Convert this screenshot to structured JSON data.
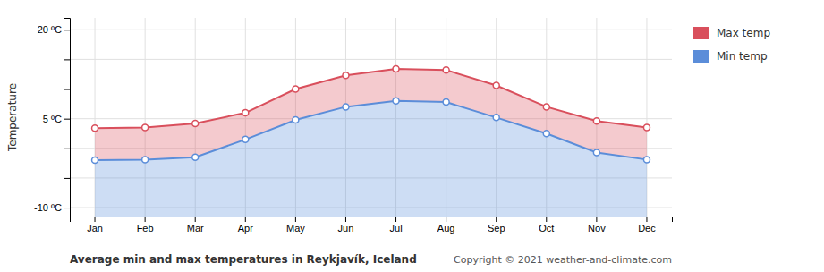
{
  "chart_data": {
    "type": "area",
    "title": "Average min and max temperatures in Reykjavík, Iceland",
    "annotations": [
      "Copyright © 2021  weather-and-climate.com"
    ],
    "y_label": "Temperature",
    "categories": [
      "Jan",
      "Feb",
      "Mar",
      "Apr",
      "May",
      "Jun",
      "Jul",
      "Aug",
      "Sep",
      "Oct",
      "Nov",
      "Dec"
    ],
    "series": [
      {
        "name": "Max temp",
        "color": "#d94f5c",
        "values": [
          3.4,
          3.5,
          4.2,
          6.0,
          10.0,
          12.3,
          13.4,
          13.2,
          10.6,
          7.0,
          4.6,
          3.5
        ]
      },
      {
        "name": "Min temp",
        "color": "#5b8dd9",
        "values": [
          -2.0,
          -1.9,
          -1.5,
          1.5,
          4.8,
          7.0,
          8.0,
          7.8,
          5.2,
          2.5,
          -0.7,
          -1.9
        ]
      }
    ],
    "ylim": [
      -11.5,
      22
    ],
    "yticks": [
      {
        "value": -10,
        "label": "-10 ºC"
      },
      {
        "value": -5,
        "label": null
      },
      {
        "value": 0,
        "label": null
      },
      {
        "value": 5,
        "label": "5 ºC"
      },
      {
        "value": 10,
        "label": null
      },
      {
        "value": 15,
        "label": null
      },
      {
        "value": 20,
        "label": "20 ºC"
      }
    ],
    "grid": true,
    "legend": "right"
  }
}
